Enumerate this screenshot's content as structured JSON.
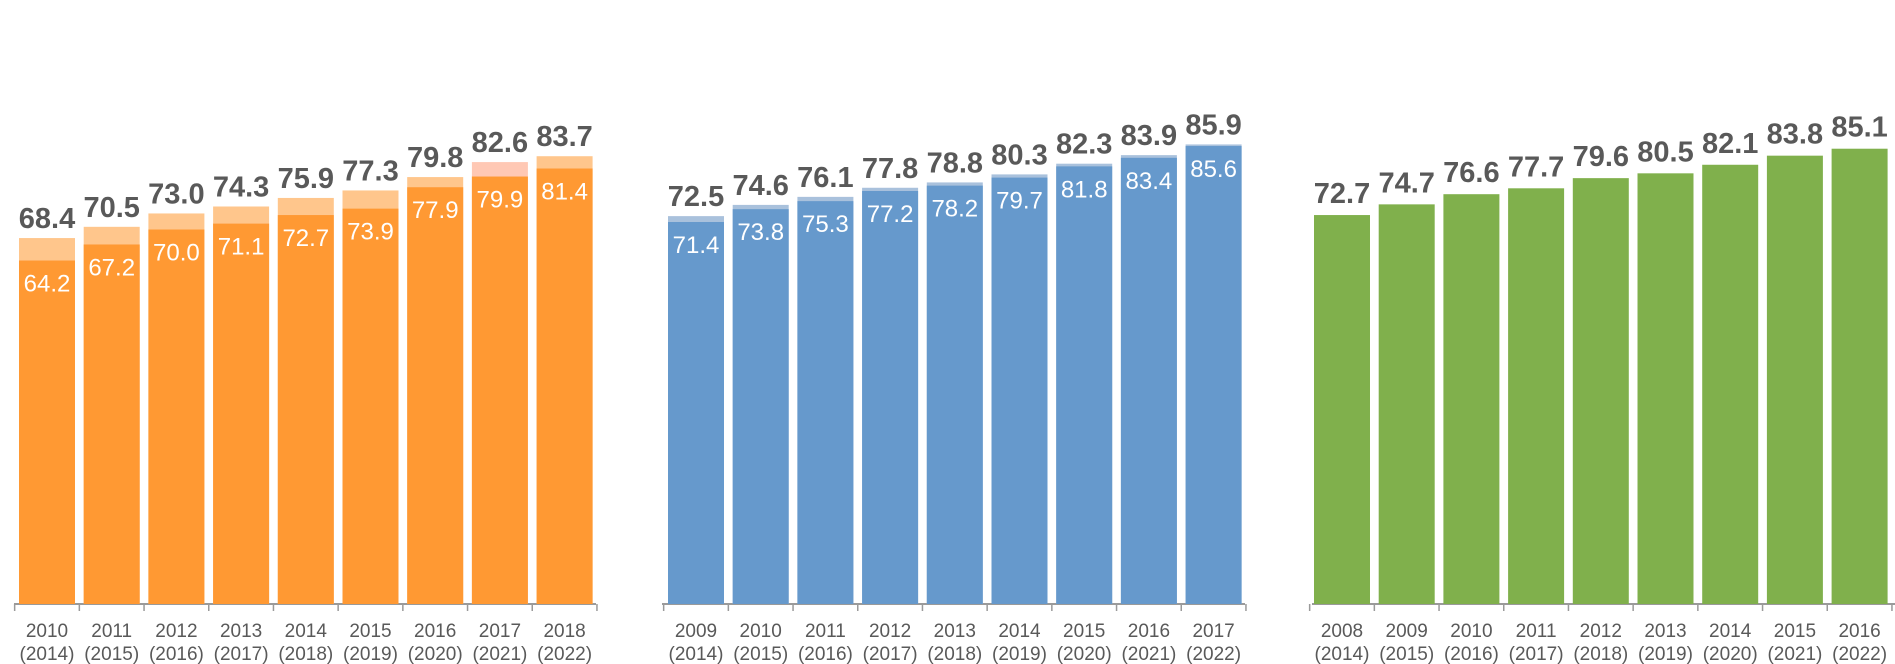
{
  "chart_data": [
    {
      "type": "bar",
      "colors": {
        "base": "#FF9933",
        "top": "#FFC68C",
        "top_highlight": "#FFC8B4"
      },
      "categories": [
        "2010\n(2014)",
        "2011\n(2015)",
        "2012\n(2016)",
        "2013\n(2017)",
        "2014\n(2018)",
        "2015\n(2019)",
        "2016\n(2020)",
        "2017\n(2021)",
        "2018\n(2022)"
      ],
      "series": [
        {
          "values": [
            64.2,
            67.2,
            70.0,
            71.1,
            72.7,
            73.9,
            77.9,
            79.9,
            81.4
          ]
        },
        {
          "values": [
            68.4,
            70.5,
            73.0,
            74.3,
            75.9,
            77.3,
            79.8,
            82.6,
            83.7
          ]
        }
      ],
      "ylim": [
        0,
        100
      ]
    },
    {
      "type": "bar",
      "colors": {
        "base": "#6699CC",
        "top": "#A9C1DC"
      },
      "categories": [
        "2009\n(2014)",
        "2010\n(2015)",
        "2011\n(2016)",
        "2012\n(2017)",
        "2013\n(2018)",
        "2014\n(2019)",
        "2015\n(2020)",
        "2016\n(2021)",
        "2017\n(2022)"
      ],
      "series": [
        {
          "values": [
            71.4,
            73.8,
            75.3,
            77.2,
            78.2,
            79.7,
            81.8,
            83.4,
            85.6
          ]
        },
        {
          "values": [
            72.5,
            74.6,
            76.1,
            77.8,
            78.8,
            80.3,
            82.3,
            83.9,
            85.9
          ]
        }
      ],
      "ylim": [
        0,
        100
      ]
    },
    {
      "type": "bar",
      "colors": {
        "base": "#80B04C"
      },
      "categories": [
        "2008\n(2014)",
        "2009\n(2015)",
        "2010\n(2016)",
        "2011\n(2017)",
        "2012\n(2018)",
        "2013\n(2019)",
        "2014\n(2020)",
        "2015\n(2021)",
        "2016\n(2022)"
      ],
      "series": [
        {
          "values": [
            72.7,
            74.7,
            76.6,
            77.7,
            79.6,
            80.5,
            82.1,
            83.8,
            85.1
          ]
        }
      ],
      "ylim": [
        0,
        100
      ]
    }
  ]
}
